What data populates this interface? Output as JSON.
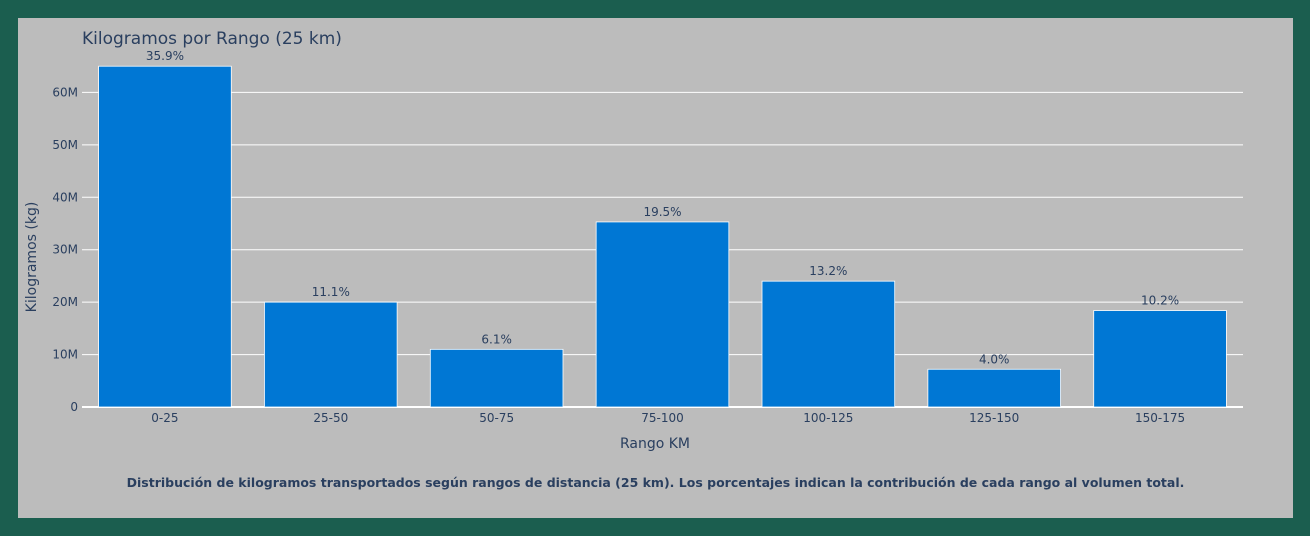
{
  "caption": "Distribución de kilogramos transportados según rangos de distancia (25 km). Los porcentajes indican la contribución de cada rango al volumen total.",
  "colors": {
    "bar": "#0077d4",
    "bar_stroke": "#ffffff",
    "plot_bg": "#bcbcbc",
    "frame": "#1b5e4f",
    "text": "#2a3f5f",
    "grid": "#ffffff"
  },
  "chart_data": {
    "type": "bar",
    "title": "Kilogramos por Rango (25 km)",
    "xlabel": "Rango KM",
    "ylabel": "Kilogramos (kg)",
    "categories": [
      "0-25",
      "25-50",
      "50-75",
      "75-100",
      "100-125",
      "125-150",
      "150-175"
    ],
    "values": [
      65000000,
      20000000,
      11000000,
      35300000,
      24000000,
      7200000,
      18400000
    ],
    "data_labels": [
      "35.9%",
      "11.1%",
      "6.1%",
      "19.5%",
      "13.2%",
      "4.0%",
      "10.2%"
    ],
    "ylim": [
      0,
      70000000
    ],
    "yticks": [
      0,
      10000000,
      20000000,
      30000000,
      40000000,
      50000000,
      60000000
    ],
    "ytick_labels": [
      "0",
      "10M",
      "20M",
      "30M",
      "40M",
      "50M",
      "60M"
    ],
    "grid": true
  }
}
